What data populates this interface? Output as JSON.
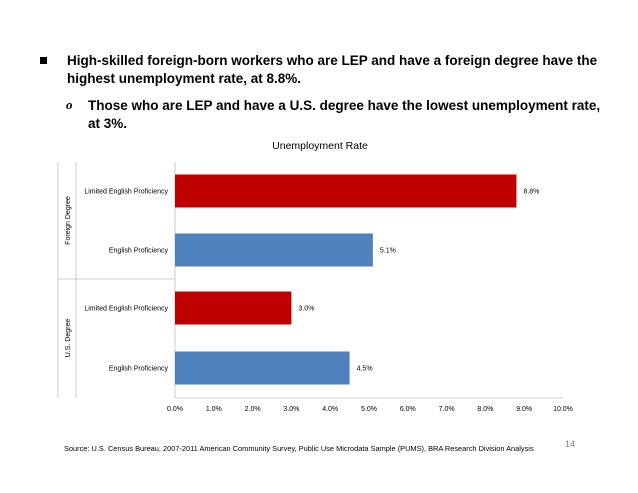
{
  "bullets": {
    "main": "High-skilled foreign-born workers who are LEP and have a foreign degree have the highest unemployment rate, at 8.8%.",
    "sub_marker": "o",
    "sub": "Those who are LEP and have a U.S. degree have the lowest unemployment rate, at 3%."
  },
  "chart_data": {
    "type": "bar",
    "orientation": "horizontal",
    "title": "Unemployment Rate",
    "xlim": [
      0,
      10
    ],
    "x_ticks": [
      "0.0%",
      "1.0%",
      "2.0%",
      "3.0%",
      "4.0%",
      "5.0%",
      "6.0%",
      "7.0%",
      "8.0%",
      "9.0%",
      "10.0%"
    ],
    "grid": false,
    "groups": [
      {
        "label": "Foreign Degree",
        "bars": [
          {
            "category": "Limited English Proficiency",
            "value": 8.8,
            "label": "8.8%",
            "color": "#c00000"
          },
          {
            "category": "English Proficiency",
            "value": 5.1,
            "label": "5.1%",
            "color": "#4f81bd"
          }
        ]
      },
      {
        "label": "U.S. Degree",
        "bars": [
          {
            "category": "Limited English Proficiency",
            "value": 3.0,
            "label": "3.0%",
            "color": "#c00000"
          },
          {
            "category": "English Proficiency",
            "value": 4.5,
            "label": "4.5%",
            "color": "#4f81bd"
          }
        ]
      }
    ]
  },
  "footer": {
    "source": "Source: U.S. Census Bureau, 2007-2011 American Community Survey, Public Use Microdata Sample (PUMS), BRA Research Division Analysis",
    "page_number": "14"
  }
}
